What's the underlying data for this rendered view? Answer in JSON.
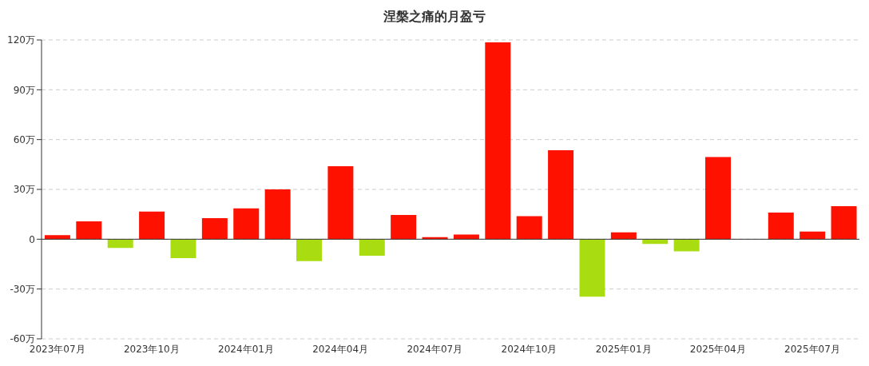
{
  "chart_data": {
    "type": "bar",
    "title": "涅槃之痛的月盈亏",
    "categories": [
      "2023年07月",
      null,
      null,
      "2023年10月",
      null,
      null,
      "2024年01月",
      null,
      null,
      "2024年04月",
      null,
      null,
      "2024年07月",
      null,
      null,
      "2024年10月",
      null,
      null,
      "2025年01月",
      null,
      null,
      "2025年04月",
      null,
      null,
      "2025年07月",
      null
    ],
    "values": [
      2.5,
      10.7,
      -5.2,
      16.6,
      -11.4,
      12.7,
      18.6,
      30,
      -13.2,
      43.9,
      -10,
      14.6,
      1.2,
      2.8,
      118.6,
      13.9,
      53.6,
      -34.6,
      4.1,
      -2.8,
      -7.3,
      49.5,
      null,
      16,
      4.6,
      19.9
    ],
    "colors": [
      "#ff1100",
      "#ff1100",
      "#aadd11",
      "#ff1100",
      "#aadd11",
      "#ff1100",
      "#ff1100",
      "#ff1100",
      "#aadd11",
      "#ff1100",
      "#aadd11",
      "#ff1100",
      "#ff1100",
      "#ff1100",
      "#ff1100",
      "#ff1100",
      "#ff1100",
      "#aadd11",
      "#ff1100",
      "#aadd11",
      "#aadd11",
      "#ff1100",
      "#ff1100",
      "#ff1100",
      "#ff1100",
      "#ff1100"
    ],
    "ylim": [
      -60,
      120
    ],
    "yticks": [
      {
        "value": -60,
        "label": "-60万"
      },
      {
        "value": -30,
        "label": "-30万"
      },
      0,
      {
        "value": 30,
        "label": "30万"
      },
      {
        "value": 60,
        "label": "60万"
      },
      {
        "value": 90,
        "label": "90万"
      },
      {
        "value": 120,
        "label": "120万"
      }
    ],
    "grid": "y"
  }
}
